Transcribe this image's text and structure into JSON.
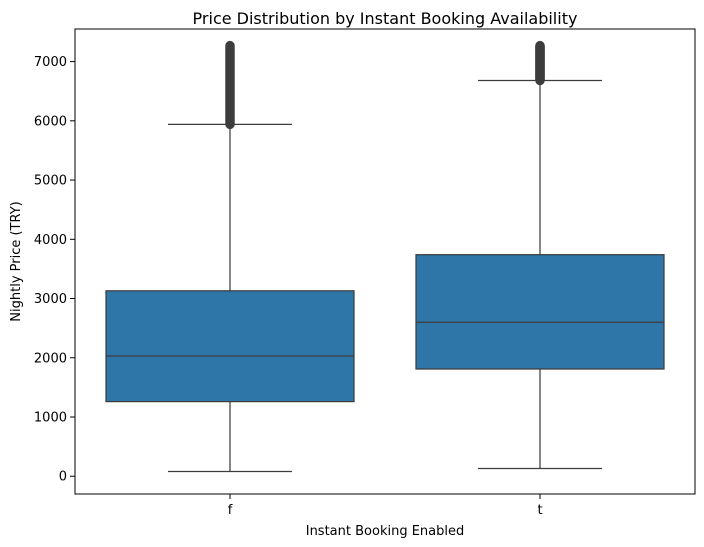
{
  "chart_data": {
    "type": "box",
    "title": "Price Distribution by Instant Booking Availability",
    "xlabel": "Instant Booking Enabled",
    "ylabel": "Nightly Price (TRY)",
    "ylim": [
      -300,
      7550
    ],
    "yticks": [
      0,
      1000,
      2000,
      3000,
      4000,
      5000,
      6000,
      7000
    ],
    "grid": false,
    "box_color": "#2e76a8",
    "line_color": "#3d3d3d",
    "categories": [
      "f",
      "t"
    ],
    "boxes": [
      {
        "category": "f",
        "whisker_low": 80,
        "q1": 1260,
        "median": 2030,
        "q3": 3130,
        "whisker_high": 5940,
        "outliers_range": [
          5940,
          7270
        ]
      },
      {
        "category": "t",
        "whisker_low": 130,
        "q1": 1810,
        "median": 2600,
        "q3": 3740,
        "whisker_high": 6680,
        "outliers_range": [
          6680,
          7270
        ]
      }
    ]
  }
}
